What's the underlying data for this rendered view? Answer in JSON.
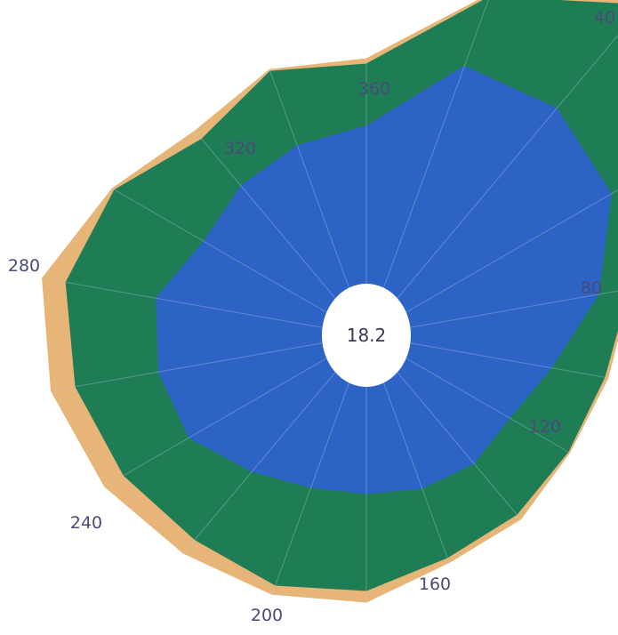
{
  "chart_data": {
    "type": "area",
    "subtype": "polar-stacked-wind-rose",
    "angle_unit": "degrees",
    "direction_labels": [
      "360",
      "40",
      "80",
      "120",
      "160",
      "200",
      "240",
      "280",
      "320"
    ],
    "center_label": "18.2",
    "theta": [
      0,
      20,
      40,
      60,
      80,
      100,
      120,
      140,
      160,
      180,
      200,
      220,
      240,
      260,
      280,
      300,
      320,
      340
    ],
    "series": [
      {
        "color": "#2e63c6",
        "values": [
          235,
          322,
          333,
          318,
          265,
          211,
          186,
          188,
          183,
          178,
          182,
          200,
          230,
          237,
          240,
          211,
          219,
          227
        ]
      },
      {
        "color": "#1f7d55",
        "values": [
          305,
          405,
          485,
          380,
          300,
          272,
          262,
          263,
          266,
          287,
          299,
          300,
          315,
          332,
          343,
          327,
          288,
          316
        ]
      },
      {
        "color": "#e6b577",
        "values": [
          311,
          409,
          490,
          385,
          302,
          276,
          264,
          270,
          272,
          300,
          310,
          320,
          340,
          360,
          370,
          330,
          300,
          318
        ]
      }
    ]
  }
}
